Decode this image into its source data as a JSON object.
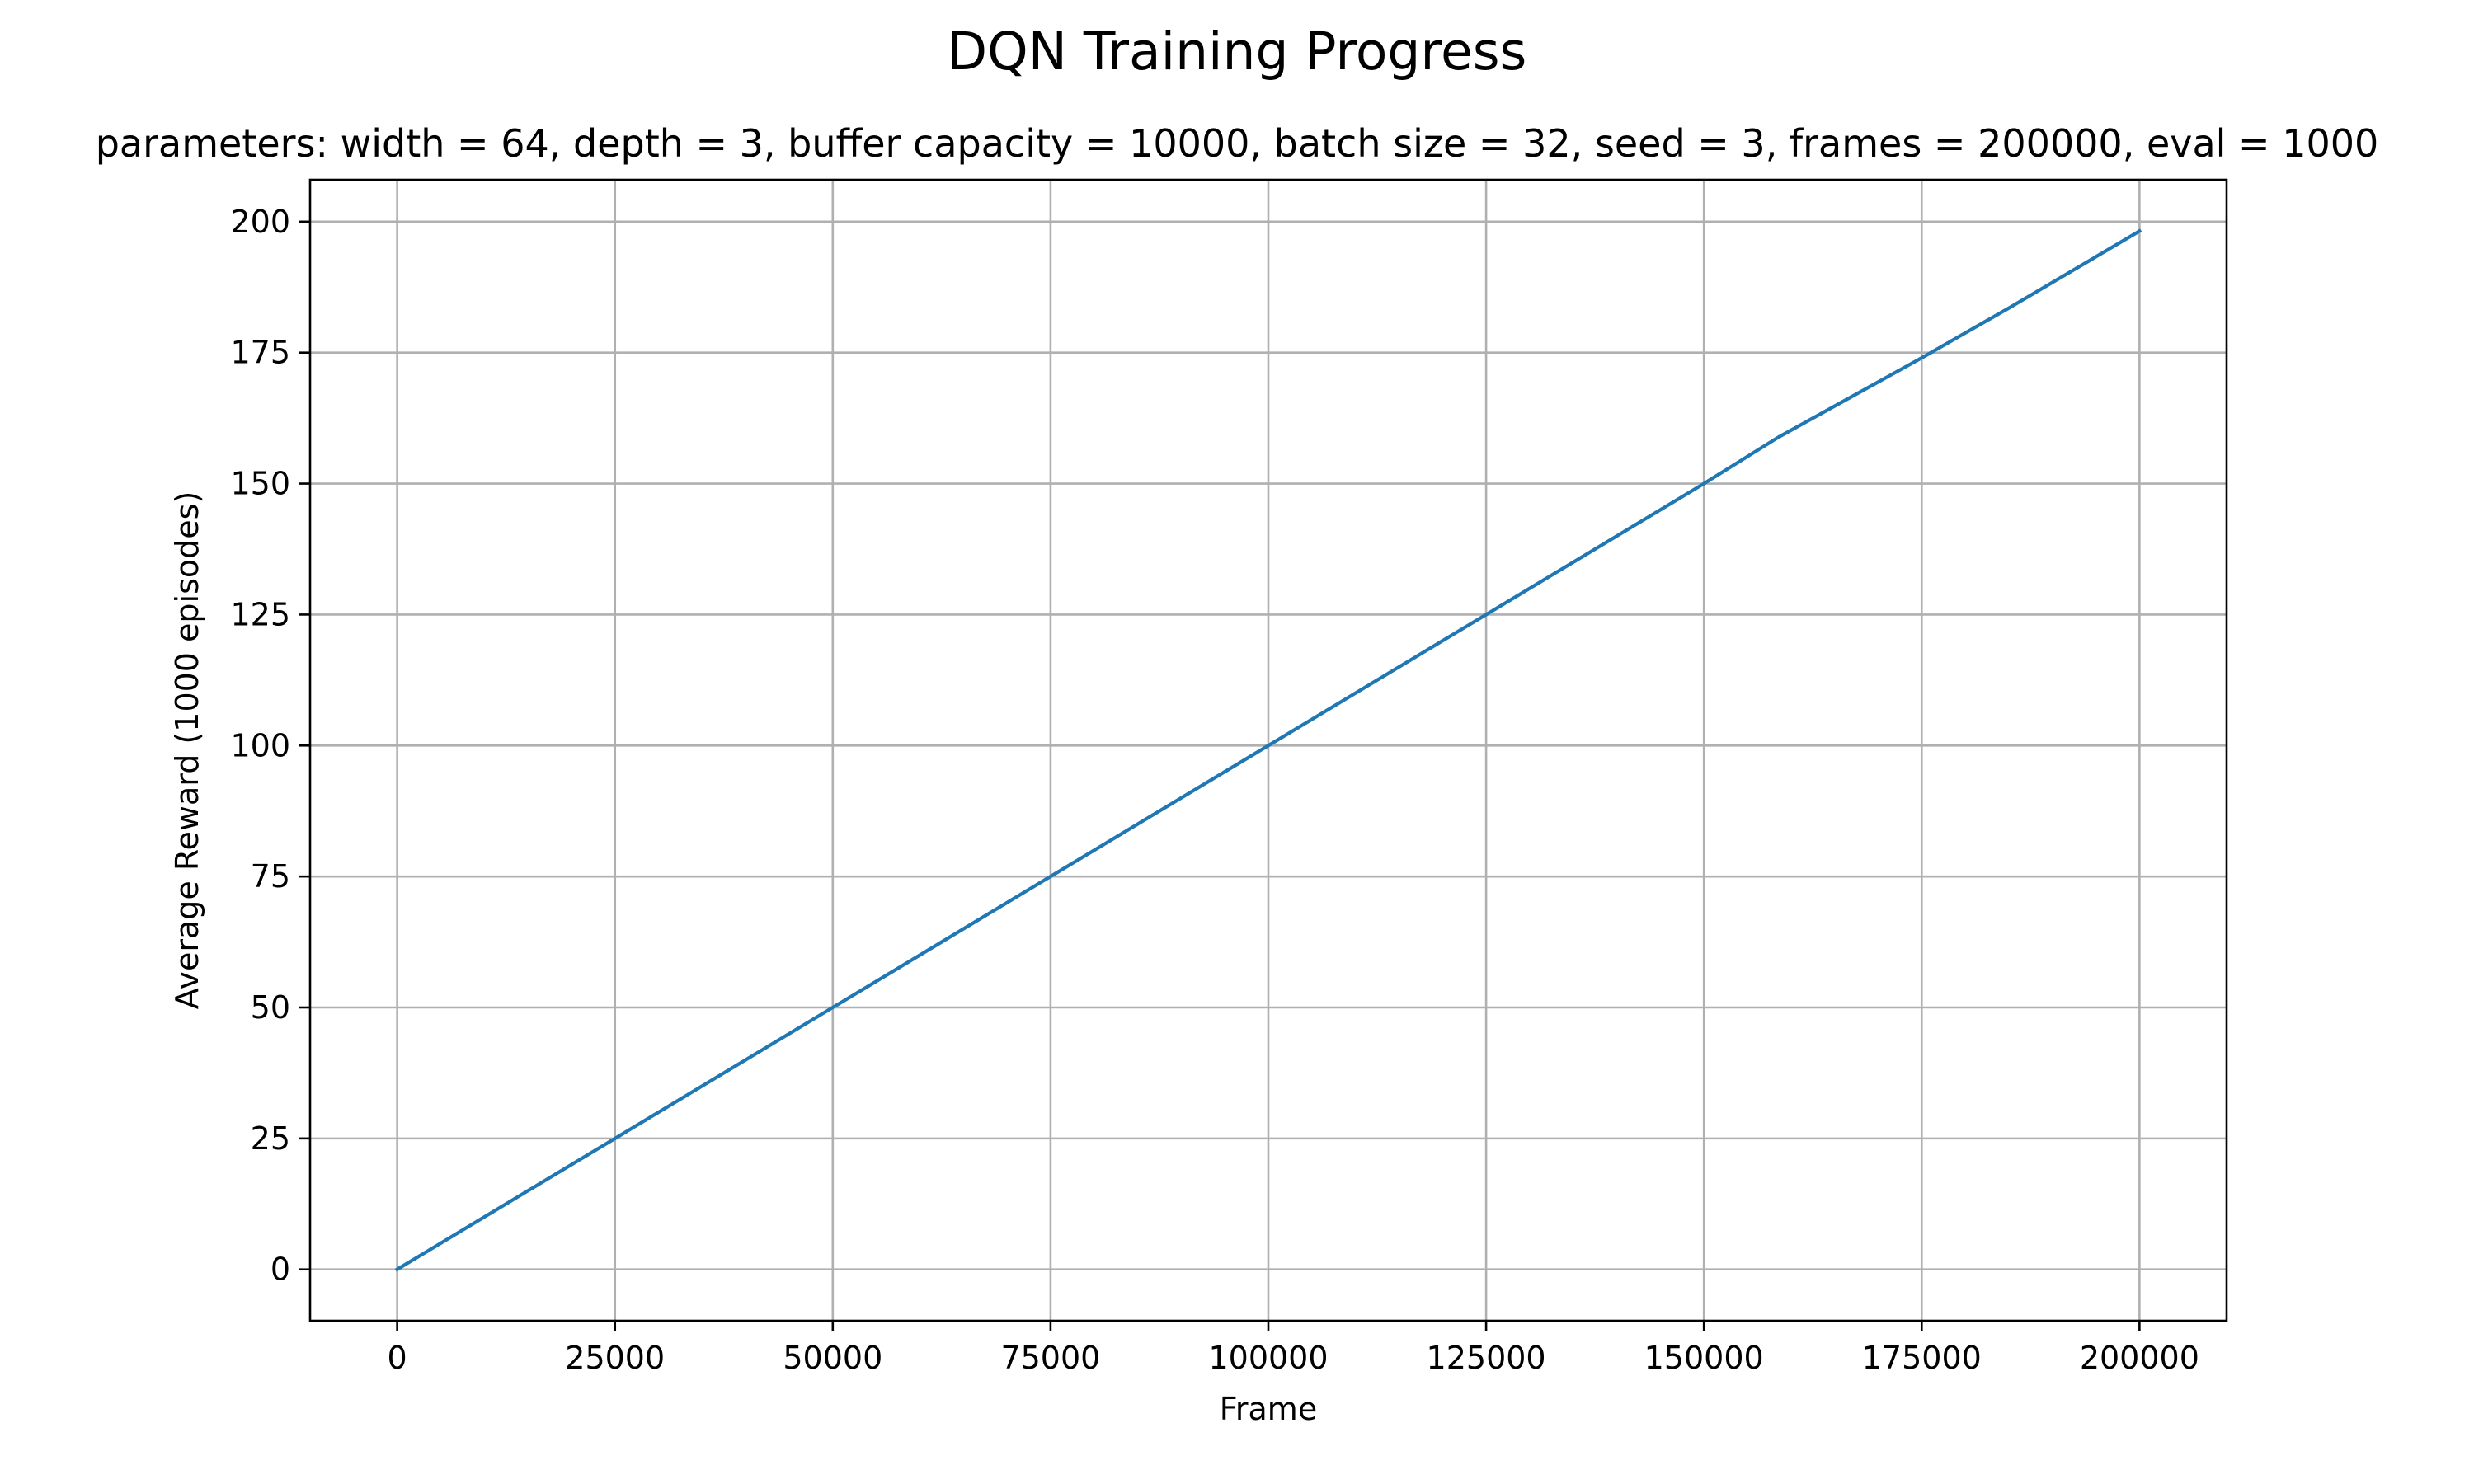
{
  "chart_data": {
    "type": "line",
    "title": "DQN Training Progress",
    "subtitle": "parameters: width = 64, depth = 3, buffer capacity = 10000, batch size = 32, seed = 3, frames = 200000, eval = 1000",
    "xlabel": "Frame",
    "ylabel": "Average Reward (1000 episodes)",
    "xlim": [
      -10000,
      210000
    ],
    "ylim": [
      -9.8,
      208
    ],
    "xticks": [
      "0",
      "25000",
      "50000",
      "75000",
      "100000",
      "125000",
      "150000",
      "175000",
      "200000"
    ],
    "yticks": [
      "0",
      "25",
      "50",
      "75",
      "100",
      "125",
      "150",
      "175",
      "200"
    ],
    "grid": true,
    "series": [
      {
        "color": "#1f77b4",
        "x": [
          0,
          25000,
          50000,
          75000,
          100000,
          125000,
          150000,
          158500,
          175000,
          185000,
          200000
        ],
        "y": [
          0,
          25,
          50,
          75,
          100,
          125,
          150,
          158.8,
          174,
          183.5,
          198.2
        ]
      }
    ]
  }
}
